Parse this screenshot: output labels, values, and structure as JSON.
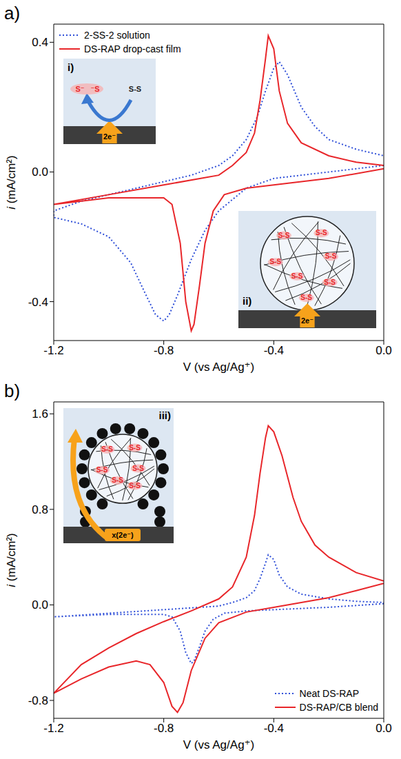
{
  "chart_data": [
    {
      "panel": "a)",
      "type": "line",
      "x_label": "V (vs Ag/Ag⁺)",
      "y_label": "i (mA/cm²)",
      "xlim": [
        -1.2,
        0.0
      ],
      "xticks": [
        -1.2,
        -0.8,
        -0.4,
        {
          "value": 0,
          "label": "0.0"
        }
      ],
      "ylim": [
        -0.52,
        0.456
      ],
      "yticks": [
        -0.4,
        {
          "value": 0,
          "label": "0.0"
        },
        0.4
      ],
      "legend": "upper left",
      "series": [
        {
          "name": "2-SS-2 solution",
          "color": "#2f4fd8",
          "line_style": "dotted",
          "x": [
            0,
            -0.2,
            -0.4,
            -0.5,
            -0.6,
            -0.65,
            -0.7,
            -0.75,
            -0.78,
            -0.8,
            -0.83,
            -0.87,
            -0.92,
            -1.0,
            -1.1,
            -1.2,
            -1.2,
            -1.1,
            -1.0,
            -0.9,
            -0.8,
            -0.7,
            -0.6,
            -0.55,
            -0.5,
            -0.46,
            -0.43,
            -0.4,
            -0.38,
            -0.35,
            -0.3,
            -0.25,
            -0.2,
            -0.1,
            0
          ],
          "values": [
            0.02,
            0.0,
            -0.02,
            -0.05,
            -0.12,
            -0.18,
            -0.27,
            -0.38,
            -0.44,
            -0.46,
            -0.44,
            -0.37,
            -0.28,
            -0.2,
            -0.16,
            -0.14,
            -0.12,
            -0.09,
            -0.07,
            -0.05,
            -0.03,
            -0.01,
            0.02,
            0.05,
            0.1,
            0.17,
            0.25,
            0.32,
            0.34,
            0.3,
            0.2,
            0.14,
            0.1,
            0.07,
            0.05
          ]
        },
        {
          "name": "DS-RAP drop-cast film",
          "color": "#e8262a",
          "line_style": "solid",
          "x": [
            0,
            -0.2,
            -0.4,
            -0.5,
            -0.58,
            -0.62,
            -0.65,
            -0.67,
            -0.69,
            -0.7,
            -0.72,
            -0.74,
            -0.77,
            -0.8,
            -1.0,
            -1.2,
            -1.2,
            -1.0,
            -0.8,
            -0.6,
            -0.55,
            -0.5,
            -0.47,
            -0.45,
            -0.43,
            -0.42,
            -0.4,
            -0.38,
            -0.35,
            -0.3,
            -0.2,
            -0.1,
            0
          ],
          "values": [
            0.01,
            -0.02,
            -0.04,
            -0.05,
            -0.07,
            -0.12,
            -0.22,
            -0.35,
            -0.47,
            -0.49,
            -0.4,
            -0.22,
            -0.1,
            -0.08,
            -0.08,
            -0.1,
            -0.1,
            -0.07,
            -0.04,
            -0.01,
            0.02,
            0.06,
            0.12,
            0.22,
            0.35,
            0.42,
            0.38,
            0.25,
            0.15,
            0.09,
            0.05,
            0.03,
            0.02
          ]
        }
      ],
      "insets": [
        {
          "label": "i)",
          "electrons": "2e⁻",
          "species": [
            "S⁻",
            "⁻S",
            "S-S"
          ]
        },
        {
          "label": "ii)",
          "electrons": "2e⁻",
          "species": [
            "S-S"
          ]
        }
      ]
    },
    {
      "panel": "b)",
      "type": "line",
      "x_label": "V (vs Ag/Ag⁺)",
      "y_label": "i (mA/cm²)",
      "xlim": [
        -1.2,
        0.0
      ],
      "xticks": [
        -1.2,
        -0.8,
        -0.4,
        {
          "value": 0,
          "label": "0.0"
        }
      ],
      "ylim": [
        -0.95,
        1.7
      ],
      "yticks": [
        -0.8,
        {
          "value": 0,
          "label": "0.0"
        },
        0.8,
        1.6
      ],
      "legend": "lower right",
      "series": [
        {
          "name": "Neat DS-RAP",
          "color": "#2f4fd8",
          "line_style": "dotted",
          "x": [
            0,
            -0.2,
            -0.4,
            -0.5,
            -0.58,
            -0.62,
            -0.65,
            -0.67,
            -0.69,
            -0.7,
            -0.72,
            -0.74,
            -0.77,
            -0.8,
            -1.0,
            -1.2,
            -1.2,
            -1.0,
            -0.8,
            -0.6,
            -0.55,
            -0.5,
            -0.47,
            -0.45,
            -0.43,
            -0.42,
            -0.4,
            -0.38,
            -0.35,
            -0.3,
            -0.2,
            -0.1,
            0
          ],
          "values": [
            0.01,
            -0.02,
            -0.04,
            -0.05,
            -0.07,
            -0.12,
            -0.22,
            -0.35,
            -0.47,
            -0.49,
            -0.4,
            -0.22,
            -0.1,
            -0.08,
            -0.08,
            -0.1,
            -0.1,
            -0.07,
            -0.04,
            -0.01,
            0.02,
            0.06,
            0.12,
            0.22,
            0.35,
            0.42,
            0.38,
            0.25,
            0.15,
            0.09,
            0.05,
            0.03,
            0.02
          ]
        },
        {
          "name": "DS-RAP/CB blend",
          "color": "#e8262a",
          "line_style": "solid",
          "x": [
            0,
            -0.1,
            -0.2,
            -0.3,
            -0.4,
            -0.5,
            -0.6,
            -0.65,
            -0.7,
            -0.73,
            -0.75,
            -0.77,
            -0.8,
            -0.85,
            -0.9,
            -1.0,
            -1.1,
            -1.2,
            -1.2,
            -1.1,
            -1.0,
            -0.9,
            -0.8,
            -0.7,
            -0.6,
            -0.55,
            -0.5,
            -0.47,
            -0.45,
            -0.43,
            -0.42,
            -0.4,
            -0.37,
            -0.33,
            -0.3,
            -0.25,
            -0.2,
            -0.1,
            0
          ],
          "values": [
            0.18,
            0.12,
            0.06,
            0.02,
            -0.02,
            -0.06,
            -0.15,
            -0.28,
            -0.55,
            -0.82,
            -0.9,
            -0.85,
            -0.65,
            -0.5,
            -0.47,
            -0.52,
            -0.62,
            -0.74,
            -0.74,
            -0.5,
            -0.36,
            -0.24,
            -0.14,
            -0.05,
            0.05,
            0.15,
            0.4,
            0.75,
            1.1,
            1.4,
            1.5,
            1.45,
            1.25,
            0.9,
            0.7,
            0.5,
            0.4,
            0.27,
            0.2
          ]
        }
      ],
      "insets": [
        {
          "label": "iii)",
          "electrons": "x(2e⁻)",
          "species": [
            "S-S"
          ]
        }
      ]
    }
  ]
}
